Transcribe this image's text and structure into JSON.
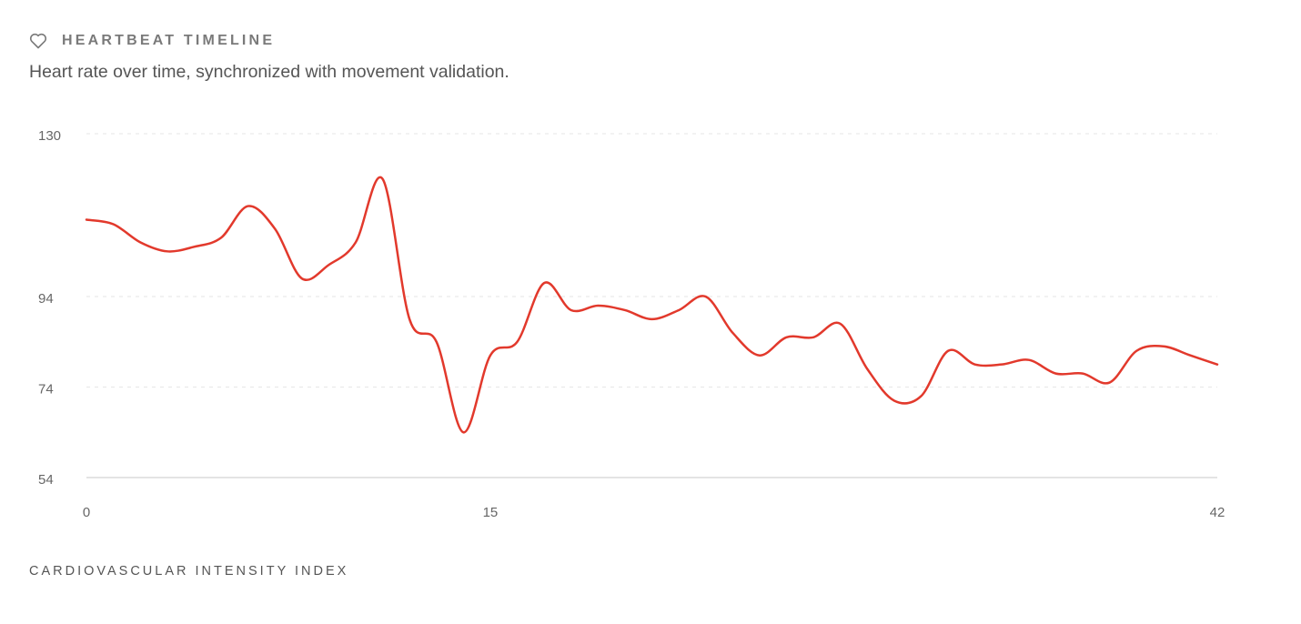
{
  "chart_data": {
    "type": "line",
    "title": "HEARTBEAT TIMELINE",
    "subtitle": "Heart rate over time, synchronized with movement validation.",
    "x_label": "CARDIOVASCULAR INTENSITY INDEX",
    "x": [
      0,
      1,
      2,
      3,
      4,
      5,
      6,
      7,
      8,
      9,
      10,
      11,
      12,
      13,
      14,
      15,
      16,
      17,
      18,
      19,
      20,
      21,
      22,
      23,
      24,
      25,
      26,
      27,
      28,
      29,
      30,
      31,
      32,
      33,
      34,
      35,
      36,
      37,
      38,
      39,
      40,
      41,
      42
    ],
    "series": [
      {
        "color": "#e2392c",
        "values": [
          111,
          110,
          106,
          104,
          105,
          107,
          114,
          109,
          98,
          101,
          106,
          120,
          89,
          84,
          64,
          81,
          84,
          97,
          91,
          92,
          91,
          89,
          91,
          94,
          86,
          81,
          85,
          85,
          88,
          78,
          71,
          72,
          82,
          79,
          79,
          80,
          77,
          77,
          75,
          82,
          83,
          81,
          79
        ]
      }
    ],
    "xlim": [
      0,
      42
    ],
    "xticks": [
      0,
      15,
      42
    ],
    "ylim": [
      54,
      130
    ],
    "yticks": [
      54,
      74,
      94,
      130
    ],
    "grid": true
  }
}
